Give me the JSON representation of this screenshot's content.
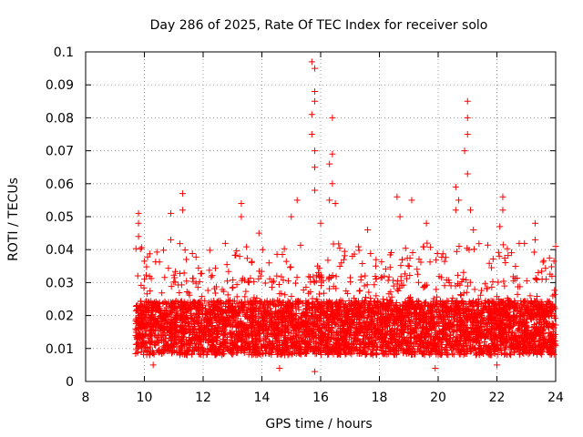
{
  "chart_data": {
    "type": "scatter",
    "title": "Day 286 of 2025, Rate Of TEC Index for receiver solo",
    "xlabel": "GPS time / hours",
    "ylabel": "ROTI / TECUs",
    "xlim": [
      8,
      24
    ],
    "ylim": [
      0,
      0.1
    ],
    "x_ticks": [
      8,
      10,
      12,
      14,
      16,
      18,
      20,
      22,
      24
    ],
    "x_tick_labels": [
      "8",
      "10",
      "12",
      "14",
      "16",
      "18",
      "20",
      "22",
      "24"
    ],
    "y_ticks": [
      0,
      0.01,
      0.02,
      0.03,
      0.04,
      0.05,
      0.06,
      0.07,
      0.08,
      0.09,
      0.1
    ],
    "y_tick_labels": [
      "0",
      "0.01",
      "0.02",
      "0.03",
      "0.04",
      "0.05",
      "0.06",
      "0.07",
      "0.08",
      "0.09",
      "0.1"
    ],
    "grid": true,
    "marker": "+",
    "color": "#ff0000",
    "series": [
      {
        "name": "ROTI",
        "data_range": {
          "x_start": 9.7,
          "x_end": 24.0
        },
        "typical_range": [
          0.008,
          0.03
        ],
        "notable_points": [
          {
            "x": 9.8,
            "y": 0.051
          },
          {
            "x": 9.8,
            "y": 0.048
          },
          {
            "x": 9.8,
            "y": 0.044
          },
          {
            "x": 10.9,
            "y": 0.051
          },
          {
            "x": 11.3,
            "y": 0.057
          },
          {
            "x": 11.3,
            "y": 0.052
          },
          {
            "x": 10.9,
            "y": 0.043
          },
          {
            "x": 13.3,
            "y": 0.054
          },
          {
            "x": 13.3,
            "y": 0.05
          },
          {
            "x": 13.9,
            "y": 0.045
          },
          {
            "x": 15.0,
            "y": 0.05
          },
          {
            "x": 15.2,
            "y": 0.055
          },
          {
            "x": 15.7,
            "y": 0.097
          },
          {
            "x": 15.8,
            "y": 0.095
          },
          {
            "x": 15.8,
            "y": 0.088
          },
          {
            "x": 15.8,
            "y": 0.085
          },
          {
            "x": 15.7,
            "y": 0.081
          },
          {
            "x": 15.7,
            "y": 0.075
          },
          {
            "x": 15.8,
            "y": 0.07
          },
          {
            "x": 15.8,
            "y": 0.065
          },
          {
            "x": 15.8,
            "y": 0.058
          },
          {
            "x": 16.4,
            "y": 0.08
          },
          {
            "x": 16.4,
            "y": 0.069
          },
          {
            "x": 16.3,
            "y": 0.066
          },
          {
            "x": 16.4,
            "y": 0.06
          },
          {
            "x": 16.3,
            "y": 0.055
          },
          {
            "x": 16.5,
            "y": 0.054
          },
          {
            "x": 15.8,
            "y": 0.003
          },
          {
            "x": 16.0,
            "y": 0.048
          },
          {
            "x": 17.6,
            "y": 0.046
          },
          {
            "x": 18.6,
            "y": 0.056
          },
          {
            "x": 18.7,
            "y": 0.05
          },
          {
            "x": 19.1,
            "y": 0.055
          },
          {
            "x": 19.6,
            "y": 0.048
          },
          {
            "x": 20.6,
            "y": 0.059
          },
          {
            "x": 20.7,
            "y": 0.055
          },
          {
            "x": 20.6,
            "y": 0.052
          },
          {
            "x": 21.0,
            "y": 0.085
          },
          {
            "x": 21.0,
            "y": 0.08
          },
          {
            "x": 21.0,
            "y": 0.075
          },
          {
            "x": 20.9,
            "y": 0.07
          },
          {
            "x": 21.0,
            "y": 0.063
          },
          {
            "x": 21.1,
            "y": 0.052
          },
          {
            "x": 21.2,
            "y": 0.046
          },
          {
            "x": 22.2,
            "y": 0.056
          },
          {
            "x": 22.2,
            "y": 0.052
          },
          {
            "x": 22.1,
            "y": 0.047
          },
          {
            "x": 23.3,
            "y": 0.048
          },
          {
            "x": 23.3,
            "y": 0.043
          },
          {
            "x": 24.0,
            "y": 0.041
          },
          {
            "x": 14.6,
            "y": 0.004
          },
          {
            "x": 10.3,
            "y": 0.005
          },
          {
            "x": 19.9,
            "y": 0.004
          },
          {
            "x": 22.0,
            "y": 0.005
          }
        ]
      }
    ]
  }
}
